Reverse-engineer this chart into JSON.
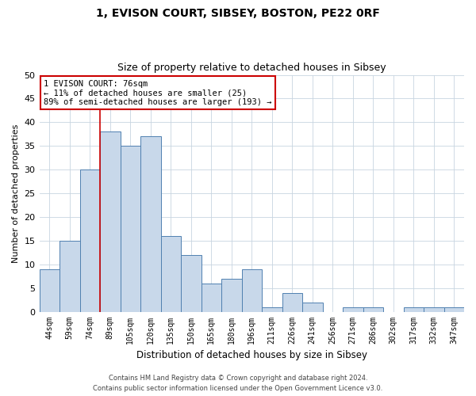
{
  "title1": "1, EVISON COURT, SIBSEY, BOSTON, PE22 0RF",
  "title2": "Size of property relative to detached houses in Sibsey",
  "xlabel": "Distribution of detached houses by size in Sibsey",
  "ylabel": "Number of detached properties",
  "categories": [
    "44sqm",
    "59sqm",
    "74sqm",
    "89sqm",
    "105sqm",
    "120sqm",
    "135sqm",
    "150sqm",
    "165sqm",
    "180sqm",
    "196sqm",
    "211sqm",
    "226sqm",
    "241sqm",
    "256sqm",
    "271sqm",
    "286sqm",
    "302sqm",
    "317sqm",
    "332sqm",
    "347sqm"
  ],
  "values": [
    9,
    15,
    30,
    38,
    35,
    37,
    16,
    12,
    6,
    7,
    9,
    1,
    4,
    2,
    0,
    1,
    1,
    0,
    1,
    1,
    1
  ],
  "bar_color": "#c8d8ea",
  "bar_edge_color": "#5080b0",
  "red_line_index": 2.5,
  "annotation_line1": "1 EVISON COURT: 76sqm",
  "annotation_line2": "← 11% of detached houses are smaller (25)",
  "annotation_line3": "89% of semi-detached houses are larger (193) →",
  "annotation_box_color": "#ffffff",
  "annotation_box_edge_color": "#cc0000",
  "footer1": "Contains HM Land Registry data © Crown copyright and database right 2024.",
  "footer2": "Contains public sector information licensed under the Open Government Licence v3.0.",
  "ylim": [
    0,
    50
  ],
  "yticks": [
    0,
    5,
    10,
    15,
    20,
    25,
    30,
    35,
    40,
    45,
    50
  ],
  "background_color": "#ffffff",
  "grid_color": "#c8d4e0"
}
